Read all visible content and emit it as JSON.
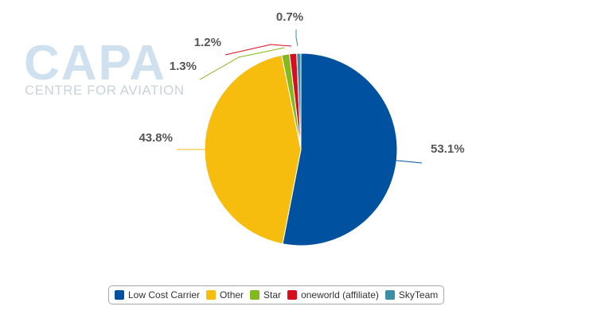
{
  "logo": {
    "brand": "CAPA",
    "tagline": "CENTRE FOR AVIATION"
  },
  "chart_data": {
    "type": "pie",
    "title": "",
    "categories": [
      "Low Cost Carrier",
      "Other",
      "Star",
      "oneworld (affiliate)",
      "SkyTeam"
    ],
    "values": [
      53.1,
      43.8,
      1.3,
      1.2,
      0.7
    ],
    "labels": [
      "53.1%",
      "43.8%",
      "1.3%",
      "1.2%",
      "0.7%"
    ],
    "colors": [
      "#0052a0",
      "#f6bd0f",
      "#84b81f",
      "#d80d1d",
      "#3b8ea5"
    ],
    "legend": "bottom-center"
  }
}
